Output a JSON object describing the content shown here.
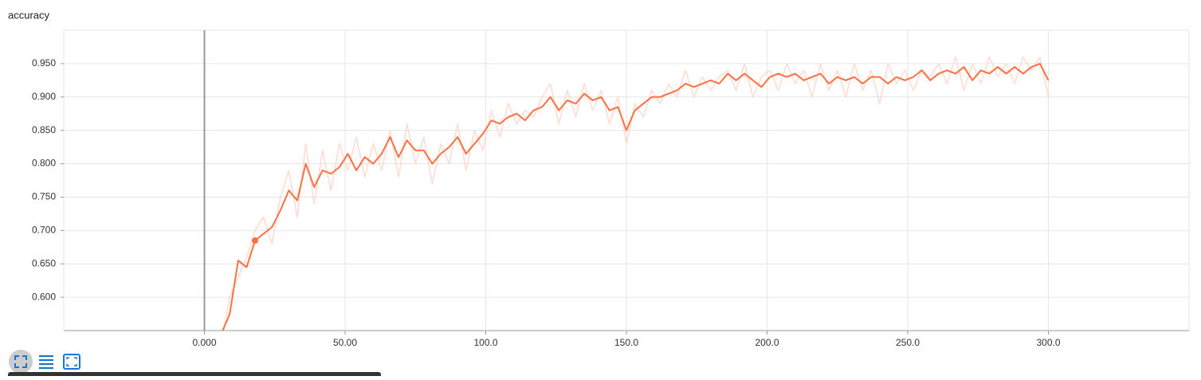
{
  "chart_data": {
    "type": "line",
    "title": "accuracy",
    "x": [
      6,
      9,
      12,
      15,
      18,
      21,
      24,
      27,
      30,
      33,
      36,
      39,
      42,
      45,
      48,
      51,
      54,
      57,
      60,
      63,
      66,
      69,
      72,
      75,
      78,
      81,
      84,
      87,
      90,
      93,
      96,
      99,
      102,
      105,
      108,
      111,
      114,
      117,
      120,
      123,
      126,
      129,
      132,
      135,
      138,
      141,
      144,
      147,
      150,
      153,
      156,
      159,
      162,
      165,
      168,
      171,
      174,
      177,
      180,
      183,
      186,
      189,
      192,
      195,
      198,
      201,
      204,
      207,
      210,
      213,
      216,
      219,
      222,
      225,
      228,
      231,
      234,
      237,
      240,
      243,
      246,
      249,
      252,
      255,
      258,
      261,
      264,
      267,
      270,
      273,
      276,
      279,
      282,
      285,
      288,
      291,
      294,
      297,
      300
    ],
    "series": [
      {
        "color": "#ffccbc",
        "opacity": 0.7,
        "width": 1.5,
        "values": [
          0.53,
          0.6,
          0.63,
          0.66,
          0.7,
          0.72,
          0.68,
          0.75,
          0.79,
          0.72,
          0.83,
          0.74,
          0.82,
          0.76,
          0.83,
          0.79,
          0.84,
          0.78,
          0.83,
          0.79,
          0.85,
          0.78,
          0.86,
          0.8,
          0.84,
          0.77,
          0.83,
          0.8,
          0.86,
          0.79,
          0.85,
          0.82,
          0.88,
          0.84,
          0.89,
          0.86,
          0.88,
          0.87,
          0.9,
          0.92,
          0.86,
          0.91,
          0.87,
          0.92,
          0.88,
          0.91,
          0.86,
          0.9,
          0.83,
          0.89,
          0.87,
          0.91,
          0.89,
          0.92,
          0.9,
          0.94,
          0.9,
          0.93,
          0.91,
          0.93,
          0.94,
          0.91,
          0.95,
          0.9,
          0.93,
          0.94,
          0.91,
          0.95,
          0.92,
          0.94,
          0.9,
          0.95,
          0.91,
          0.94,
          0.9,
          0.95,
          0.91,
          0.94,
          0.89,
          0.95,
          0.92,
          0.94,
          0.91,
          0.94,
          0.93,
          0.95,
          0.92,
          0.96,
          0.91,
          0.95,
          0.92,
          0.96,
          0.93,
          0.95,
          0.92,
          0.96,
          0.94,
          0.96,
          0.9
        ]
      },
      {
        "color": "#ff7043",
        "opacity": 1,
        "width": 2,
        "highlight": 4,
        "values": [
          0.545,
          0.575,
          0.655,
          0.645,
          0.685,
          0.695,
          0.705,
          0.73,
          0.76,
          0.745,
          0.8,
          0.765,
          0.79,
          0.785,
          0.795,
          0.815,
          0.79,
          0.81,
          0.8,
          0.815,
          0.84,
          0.81,
          0.835,
          0.82,
          0.82,
          0.8,
          0.815,
          0.825,
          0.84,
          0.815,
          0.83,
          0.845,
          0.865,
          0.86,
          0.87,
          0.875,
          0.865,
          0.88,
          0.885,
          0.9,
          0.88,
          0.895,
          0.89,
          0.905,
          0.895,
          0.9,
          0.88,
          0.885,
          0.85,
          0.88,
          0.89,
          0.9,
          0.9,
          0.905,
          0.91,
          0.92,
          0.915,
          0.92,
          0.925,
          0.92,
          0.935,
          0.925,
          0.935,
          0.925,
          0.915,
          0.93,
          0.935,
          0.93,
          0.935,
          0.925,
          0.93,
          0.935,
          0.92,
          0.93,
          0.925,
          0.93,
          0.92,
          0.93,
          0.93,
          0.92,
          0.93,
          0.925,
          0.93,
          0.94,
          0.925,
          0.935,
          0.94,
          0.935,
          0.945,
          0.925,
          0.94,
          0.935,
          0.945,
          0.935,
          0.945,
          0.935,
          0.945,
          0.95,
          0.925
        ]
      }
    ],
    "xlim": [
      -50,
      350
    ],
    "ylim": [
      0.55,
      1.0
    ],
    "xticks": [
      {
        "value": 0,
        "label": "0.000"
      },
      {
        "value": 50,
        "label": "50.00"
      },
      {
        "value": 100,
        "label": "100.0"
      },
      {
        "value": 150,
        "label": "150.0"
      },
      {
        "value": 200,
        "label": "200.0"
      },
      {
        "value": 250,
        "label": "250.0"
      },
      {
        "value": 300,
        "label": "300.0"
      }
    ],
    "yticks": [
      {
        "value": 0.6,
        "label": "0.600"
      },
      {
        "value": 0.65,
        "label": "0.650"
      },
      {
        "value": 0.7,
        "label": "0.700"
      },
      {
        "value": 0.75,
        "label": "0.750"
      },
      {
        "value": 0.8,
        "label": "0.800"
      },
      {
        "value": 0.85,
        "label": "0.850"
      },
      {
        "value": 0.9,
        "label": "0.900"
      },
      {
        "value": 0.95,
        "label": "0.950"
      }
    ],
    "grid": true,
    "zero_line": true
  }
}
